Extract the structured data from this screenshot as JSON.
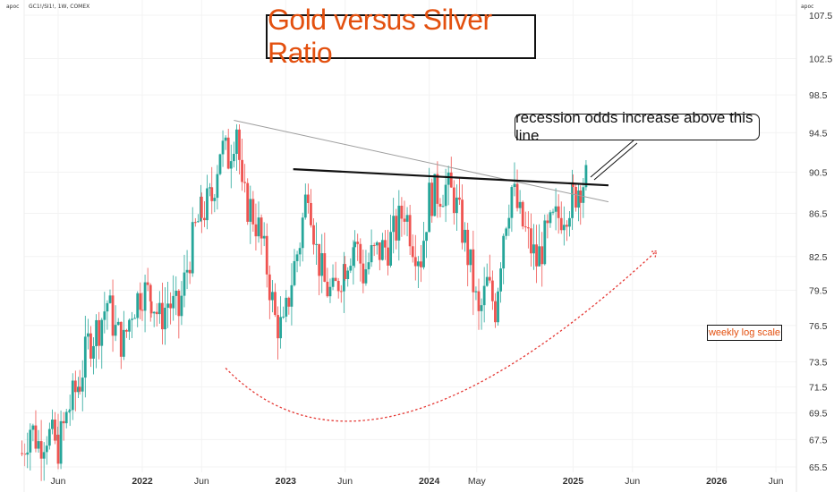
{
  "header": {
    "symbol_info": "GC1!/SI1!, 1W, COMEX",
    "unit_left": "apoc",
    "unit_right": "apoc"
  },
  "annotations": {
    "title": "Gold versus Silver Ratio",
    "callout": "recession odds increase above this line",
    "scale_note": "weekly log scale"
  },
  "colors": {
    "up": "#26a69a",
    "down": "#ef5350",
    "annotation_text": "#e3500f",
    "arc": "#e53935"
  },
  "chart_data": {
    "type": "candlestick",
    "title": "Gold versus Silver Ratio",
    "scale": "log",
    "ylim": [
      65.5,
      107.5
    ],
    "y_ticks": [
      65.5,
      67.5,
      69.5,
      71.5,
      73.5,
      76.5,
      79.5,
      82.5,
      86.5,
      90.5,
      94.5,
      98.5,
      102.5,
      107.5
    ],
    "y_tick_labels": [
      "65.5",
      "67.5",
      "69.5",
      "71.5",
      "73.5",
      "76.5",
      "79.5",
      "82.5",
      "86.5",
      "90.5",
      "94.5",
      "98.5",
      "102.5",
      "107.5"
    ],
    "x_ticks": [
      {
        "label": "Jun",
        "date": "2021-06-01",
        "bold": false
      },
      {
        "label": "2022",
        "date": "2022-01-01",
        "bold": true
      },
      {
        "label": "Jun",
        "date": "2022-06-01",
        "bold": false
      },
      {
        "label": "2023",
        "date": "2023-01-01",
        "bold": true
      },
      {
        "label": "Jun",
        "date": "2023-06-01",
        "bold": false
      },
      {
        "label": "2024",
        "date": "2024-01-01",
        "bold": true
      },
      {
        "label": "May",
        "date": "2024-05-01",
        "bold": false
      },
      {
        "label": "2025",
        "date": "2025-01-01",
        "bold": true
      },
      {
        "label": "Jun",
        "date": "2025-06-01",
        "bold": false
      },
      {
        "label": "2026",
        "date": "2026-01-01",
        "bold": true
      },
      {
        "label": "Jun",
        "date": "2026-06-01",
        "bold": false
      }
    ],
    "series": [
      {
        "kind": "weekly_closes_approx",
        "points": [
          [
            "2021-03-01",
            66.5
          ],
          [
            "2021-03-22",
            68.5
          ],
          [
            "2021-04-12",
            67.2
          ],
          [
            "2021-05-03",
            68.0
          ],
          [
            "2021-06-01",
            67.0
          ],
          [
            "2021-07-01",
            70.0
          ],
          [
            "2021-07-26",
            72.0
          ],
          [
            "2021-08-16",
            75.0
          ],
          [
            "2021-09-13",
            76.5
          ],
          [
            "2021-10-04",
            78.5
          ],
          [
            "2021-10-25",
            76.0
          ],
          [
            "2021-11-15",
            75.0
          ],
          [
            "2021-12-06",
            78.0
          ],
          [
            "2022-01-01",
            79.5
          ],
          [
            "2022-01-24",
            79.0
          ],
          [
            "2022-02-14",
            77.0
          ],
          [
            "2022-03-07",
            78.5
          ],
          [
            "2022-04-04",
            77.5
          ],
          [
            "2022-04-25",
            81.5
          ],
          [
            "2022-05-16",
            85.0
          ],
          [
            "2022-06-01",
            86.5
          ],
          [
            "2022-06-27",
            88.0
          ],
          [
            "2022-07-18",
            93.0
          ],
          [
            "2022-08-08",
            92.0
          ],
          [
            "2022-08-29",
            95.5
          ],
          [
            "2022-09-12",
            88.0
          ],
          [
            "2022-10-03",
            87.0
          ],
          [
            "2022-10-24",
            85.0
          ],
          [
            "2022-11-14",
            81.5
          ],
          [
            "2022-12-05",
            77.0
          ],
          [
            "2022-12-26",
            76.0
          ],
          [
            "2023-01-16",
            80.5
          ],
          [
            "2023-02-06",
            84.0
          ],
          [
            "2023-02-27",
            89.5
          ],
          [
            "2023-03-20",
            83.0
          ],
          [
            "2023-04-10",
            80.0
          ],
          [
            "2023-05-01",
            79.0
          ],
          [
            "2023-06-01",
            82.0
          ],
          [
            "2023-06-26",
            84.0
          ],
          [
            "2023-07-17",
            81.0
          ],
          [
            "2023-08-07",
            82.5
          ],
          [
            "2023-08-28",
            83.0
          ],
          [
            "2023-09-18",
            83.5
          ],
          [
            "2023-10-09",
            85.0
          ],
          [
            "2023-10-30",
            87.0
          ],
          [
            "2023-11-20",
            84.0
          ],
          [
            "2023-12-11",
            82.5
          ],
          [
            "2024-01-01",
            88.0
          ],
          [
            "2024-01-22",
            88.5
          ],
          [
            "2024-02-12",
            89.0
          ],
          [
            "2024-03-04",
            88.0
          ],
          [
            "2024-03-25",
            85.0
          ],
          [
            "2024-04-15",
            81.5
          ],
          [
            "2024-05-06",
            77.0
          ],
          [
            "2024-05-27",
            80.0
          ],
          [
            "2024-06-17",
            78.0
          ],
          [
            "2024-07-08",
            85.0
          ],
          [
            "2024-07-29",
            89.0
          ],
          [
            "2024-08-19",
            86.0
          ],
          [
            "2024-09-09",
            84.0
          ],
          [
            "2024-09-30",
            82.0
          ],
          [
            "2024-10-21",
            84.0
          ],
          [
            "2024-11-11",
            85.5
          ],
          [
            "2024-12-02",
            86.5
          ],
          [
            "2025-01-01",
            88.0
          ],
          [
            "2025-01-20",
            89.5
          ],
          [
            "2025-02-10",
            89.8
          ]
        ]
      }
    ],
    "overlays": [
      {
        "kind": "trendline",
        "from": [
          "2022-08-22",
          95.8
        ],
        "to": [
          "2025-04-01",
          87.6
        ]
      },
      {
        "kind": "horizontal_resistance",
        "from": [
          "2023-01-20",
          90.8
        ],
        "to": [
          "2025-04-01",
          89.2
        ]
      },
      {
        "kind": "arc",
        "from": [
          "2022-08-01",
          73.0
        ],
        "through": [
          "2023-11-01",
          69.5
        ],
        "to": [
          "2025-08-01",
          83.0
        ]
      }
    ]
  }
}
